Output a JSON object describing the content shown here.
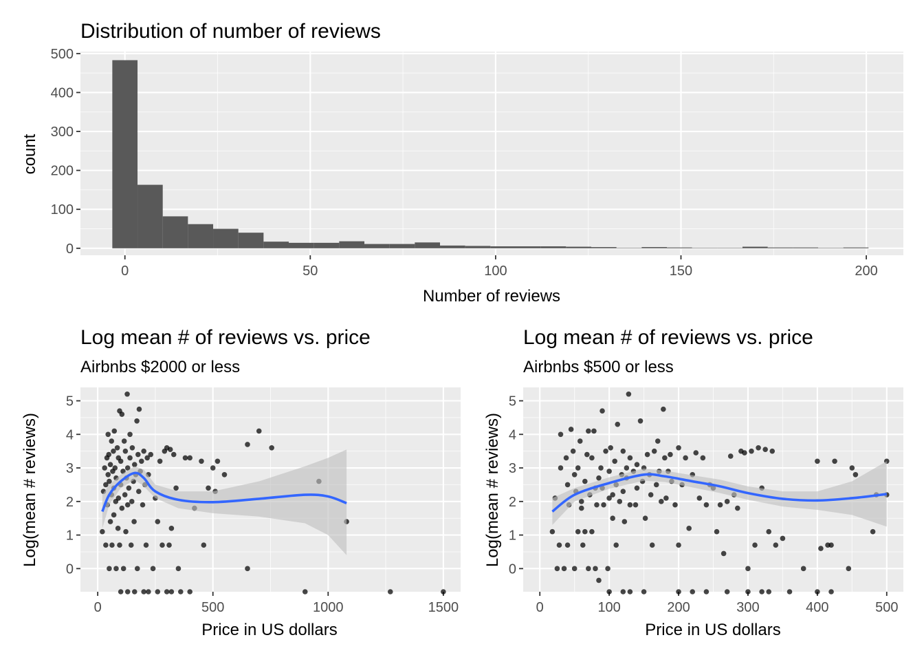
{
  "colors": {
    "panel_background": "#ebebeb",
    "histogram_fill": "#595959",
    "smooth_line": "#3366ff",
    "confidence_band": "#c0c0c0",
    "points": "#000000"
  },
  "chart_data": [
    {
      "type": "bar",
      "title": "Distribution of number of reviews",
      "subtitle": "",
      "xlabel": "Number of reviews",
      "ylabel": "count",
      "xlim": [
        -12,
        210
      ],
      "ylim": [
        -18,
        505
      ],
      "xticks": [
        0,
        50,
        100,
        150,
        200
      ],
      "yticks": [
        0,
        100,
        200,
        300,
        400,
        500
      ],
      "binwidth": 6.8,
      "bin_centers": [
        0,
        6.8,
        13.6,
        20.4,
        27.2,
        34,
        40.8,
        47.6,
        54.4,
        61.2,
        68,
        74.8,
        81.6,
        88.4,
        95.2,
        102,
        108.8,
        115.6,
        122.4,
        129.2,
        136,
        142.8,
        149.6,
        156.4,
        163.2,
        170,
        176.8,
        183.6,
        190.4,
        197.2
      ],
      "values": [
        483,
        163,
        82,
        62,
        50,
        40,
        17,
        14,
        14,
        18,
        11,
        11,
        15,
        7,
        6,
        5,
        5,
        5,
        4,
        3,
        1,
        3,
        2,
        1,
        1,
        4,
        2,
        2,
        1,
        2
      ],
      "grid": true,
      "legend": "none"
    },
    {
      "type": "scatter",
      "title": "Log mean #  of reviews vs. price",
      "subtitle": "Airbnbs $2000 or less",
      "xlabel": "Price in  US dollars",
      "ylabel": "Log(mean # reviews)",
      "xlim": [
        -75,
        1575
      ],
      "ylim": [
        -0.69,
        5.4
      ],
      "xticks": [
        0,
        500,
        1000,
        1500
      ],
      "yticks": [
        0,
        1,
        2,
        3,
        4,
        5
      ],
      "points": [
        [
          20,
          1.1
        ],
        [
          25,
          2.3
        ],
        [
          30,
          3.0
        ],
        [
          35,
          0.7
        ],
        [
          35,
          2.5
        ],
        [
          40,
          3.3
        ],
        [
          42,
          1.9
        ],
        [
          45,
          4.0
        ],
        [
          45,
          2.8
        ],
        [
          48,
          3.4
        ],
        [
          50,
          2.6
        ],
        [
          50,
          0.0
        ],
        [
          55,
          1.4
        ],
        [
          55,
          3.1
        ],
        [
          60,
          2.2
        ],
        [
          60,
          3.8
        ],
        [
          62,
          0.7
        ],
        [
          65,
          2.9
        ],
        [
          68,
          3.5
        ],
        [
          70,
          1.6
        ],
        [
          70,
          2.4
        ],
        [
          72,
          4.1
        ],
        [
          75,
          3.0
        ],
        [
          78,
          2.0
        ],
        [
          80,
          0.0
        ],
        [
          80,
          2.7
        ],
        [
          85,
          3.6
        ],
        [
          88,
          1.2
        ],
        [
          90,
          3.3
        ],
        [
          90,
          2.1
        ],
        [
          95,
          0.7
        ],
        [
          95,
          4.7
        ],
        [
          100,
          2.5
        ],
        [
          100,
          3.2
        ],
        [
          105,
          1.8
        ],
        [
          105,
          4.6
        ],
        [
          110,
          2.9
        ],
        [
          112,
          0.0
        ],
        [
          115,
          3.8
        ],
        [
          118,
          2.2
        ],
        [
          120,
          3.5
        ],
        [
          122,
          1.1
        ],
        [
          125,
          2.7
        ],
        [
          128,
          5.2
        ],
        [
          130,
          1.9
        ],
        [
          130,
          3.0
        ],
        [
          135,
          2.4
        ],
        [
          140,
          4.0
        ],
        [
          140,
          3.3
        ],
        [
          145,
          0.7
        ],
        [
          148,
          2.0
        ],
        [
          150,
          3.6
        ],
        [
          155,
          2.6
        ],
        [
          158,
          1.4
        ],
        [
          160,
          3.1
        ],
        [
          165,
          2.8
        ],
        [
          170,
          4.4
        ],
        [
          172,
          0.0
        ],
        [
          175,
          3.4
        ],
        [
          178,
          2.3
        ],
        [
          180,
          4.75
        ],
        [
          185,
          2.9
        ],
        [
          190,
          3.2
        ],
        [
          195,
          1.9
        ],
        [
          200,
          3.5
        ],
        [
          205,
          2.5
        ],
        [
          210,
          0.7
        ],
        [
          215,
          3.3
        ],
        [
          220,
          2.8
        ],
        [
          230,
          3.4
        ],
        [
          240,
          0.0
        ],
        [
          250,
          2.1
        ],
        [
          260,
          1.4
        ],
        [
          270,
          3.2
        ],
        [
          280,
          0.7
        ],
        [
          290,
          3.5
        ],
        [
          300,
          3.6
        ],
        [
          310,
          0.7
        ],
        [
          315,
          3.55
        ],
        [
          320,
          1.2
        ],
        [
          330,
          3.4
        ],
        [
          340,
          2.4
        ],
        [
          350,
          0.0
        ],
        [
          380,
          3.3
        ],
        [
          400,
          3.3
        ],
        [
          420,
          1.8
        ],
        [
          450,
          3.2
        ],
        [
          460,
          0.7
        ],
        [
          480,
          2.4
        ],
        [
          500,
          3.0
        ],
        [
          510,
          2.3
        ],
        [
          520,
          3.2
        ],
        [
          550,
          2.8
        ],
        [
          650,
          3.7
        ],
        [
          700,
          4.1
        ],
        [
          755,
          3.6
        ],
        [
          650,
          0.0
        ],
        [
          960,
          2.6
        ],
        [
          1080,
          1.4
        ],
        [
          1270,
          -0.69
        ],
        [
          1500,
          -0.69
        ],
        [
          100,
          -0.69
        ],
        [
          130,
          -0.69
        ],
        [
          160,
          -0.69
        ],
        [
          200,
          -0.69
        ],
        [
          220,
          -0.69
        ],
        [
          260,
          -0.69
        ],
        [
          300,
          -0.69
        ],
        [
          320,
          -0.69
        ],
        [
          360,
          -0.69
        ],
        [
          400,
          -0.69
        ],
        [
          900,
          -0.69
        ]
      ],
      "smooth_curve": [
        [
          20,
          1.7
        ],
        [
          50,
          2.2
        ],
        [
          100,
          2.6
        ],
        [
          160,
          2.85
        ],
        [
          200,
          2.7
        ],
        [
          250,
          2.3
        ],
        [
          350,
          2.05
        ],
        [
          500,
          1.98
        ],
        [
          700,
          2.08
        ],
        [
          900,
          2.2
        ],
        [
          1000,
          2.15
        ],
        [
          1080,
          1.95
        ]
      ],
      "band_lower": [
        [
          20,
          1.2
        ],
        [
          50,
          1.9
        ],
        [
          100,
          2.4
        ],
        [
          160,
          2.65
        ],
        [
          200,
          2.45
        ],
        [
          250,
          2.1
        ],
        [
          350,
          1.8
        ],
        [
          500,
          1.65
        ],
        [
          700,
          1.55
        ],
        [
          900,
          1.35
        ],
        [
          1000,
          1.0
        ],
        [
          1080,
          0.4
        ]
      ],
      "band_upper": [
        [
          20,
          2.2
        ],
        [
          50,
          2.5
        ],
        [
          100,
          2.8
        ],
        [
          160,
          3.05
        ],
        [
          200,
          2.95
        ],
        [
          250,
          2.5
        ],
        [
          350,
          2.3
        ],
        [
          500,
          2.3
        ],
        [
          700,
          2.6
        ],
        [
          900,
          3.05
        ],
        [
          1000,
          3.3
        ],
        [
          1080,
          3.55
        ]
      ],
      "grid": true,
      "legend": "none"
    },
    {
      "type": "scatter",
      "title": "Log mean # of reviews vs. price",
      "subtitle": "Airbnbs $500 or less",
      "xlabel": "Price in  US dollars",
      "ylabel": "Log(mean # reviews)",
      "xlim": [
        -24,
        524
      ],
      "ylim": [
        -0.69,
        5.4
      ],
      "xticks": [
        0,
        100,
        200,
        300,
        400,
        500
      ],
      "yticks": [
        0,
        1,
        2,
        3,
        4,
        5
      ],
      "points": [
        [
          18,
          1.1
        ],
        [
          22,
          2.1
        ],
        [
          25,
          0.0
        ],
        [
          28,
          0.7
        ],
        [
          30,
          3.0
        ],
        [
          30,
          4.0
        ],
        [
          35,
          0.0
        ],
        [
          38,
          3.3
        ],
        [
          40,
          2.5
        ],
        [
          40,
          0.7
        ],
        [
          42,
          1.9
        ],
        [
          45,
          4.15
        ],
        [
          48,
          3.5
        ],
        [
          50,
          2.8
        ],
        [
          50,
          0.0
        ],
        [
          52,
          2.3
        ],
        [
          55,
          1.1
        ],
        [
          55,
          3.0
        ],
        [
          58,
          3.8
        ],
        [
          60,
          2.0
        ],
        [
          60,
          1.8
        ],
        [
          62,
          0.7
        ],
        [
          65,
          1.1
        ],
        [
          65,
          2.6
        ],
        [
          68,
          3.4
        ],
        [
          70,
          0.0
        ],
        [
          70,
          4.1
        ],
        [
          72,
          2.2
        ],
        [
          75,
          3.3
        ],
        [
          75,
          1.1
        ],
        [
          78,
          4.1
        ],
        [
          80,
          2.4
        ],
        [
          80,
          0.0
        ],
        [
          82,
          1.9
        ],
        [
          85,
          2.7
        ],
        [
          85,
          -0.35
        ],
        [
          88,
          3.0
        ],
        [
          90,
          4.7
        ],
        [
          90,
          2.4
        ],
        [
          92,
          1.9
        ],
        [
          95,
          3.5
        ],
        [
          98,
          0.0
        ],
        [
          100,
          2.1
        ],
        [
          100,
          2.9
        ],
        [
          102,
          3.6
        ],
        [
          105,
          2.2
        ],
        [
          105,
          1.5
        ],
        [
          108,
          3.2
        ],
        [
          110,
          0.7
        ],
        [
          110,
          2.5
        ],
        [
          112,
          4.3
        ],
        [
          115,
          2.0
        ],
        [
          118,
          2.8
        ],
        [
          120,
          3.5
        ],
        [
          120,
          2.3
        ],
        [
          122,
          1.4
        ],
        [
          125,
          3.0
        ],
        [
          125,
          2.7
        ],
        [
          128,
          5.2
        ],
        [
          130,
          1.9
        ],
        [
          130,
          3.3
        ],
        [
          135,
          2.9
        ],
        [
          138,
          1.9
        ],
        [
          140,
          2.4
        ],
        [
          140,
          3.1
        ],
        [
          145,
          4.4
        ],
        [
          148,
          2.6
        ],
        [
          150,
          3.0
        ],
        [
          152,
          1.5
        ],
        [
          155,
          3.4
        ],
        [
          158,
          2.8
        ],
        [
          160,
          2.2
        ],
        [
          162,
          0.7
        ],
        [
          165,
          3.5
        ],
        [
          168,
          2.5
        ],
        [
          170,
          3.8
        ],
        [
          172,
          2.9
        ],
        [
          175,
          2.0
        ],
        [
          178,
          4.75
        ],
        [
          180,
          3.3
        ],
        [
          182,
          2.1
        ],
        [
          185,
          2.9
        ],
        [
          188,
          3.4
        ],
        [
          190,
          2.6
        ],
        [
          195,
          1.9
        ],
        [
          200,
          3.6
        ],
        [
          200,
          0.7
        ],
        [
          205,
          2.5
        ],
        [
          210,
          3.3
        ],
        [
          215,
          1.2
        ],
        [
          220,
          2.8
        ],
        [
          225,
          3.45
        ],
        [
          230,
          2.1
        ],
        [
          235,
          3.3
        ],
        [
          240,
          1.9
        ],
        [
          245,
          2.5
        ],
        [
          250,
          2.4
        ],
        [
          255,
          1.1
        ],
        [
          260,
          1.9
        ],
        [
          265,
          0.45
        ],
        [
          270,
          2.0
        ],
        [
          275,
          3.35
        ],
        [
          280,
          2.2
        ],
        [
          285,
          1.8
        ],
        [
          290,
          3.5
        ],
        [
          295,
          3.45
        ],
        [
          300,
          0.0
        ],
        [
          305,
          3.5
        ],
        [
          310,
          0.7
        ],
        [
          315,
          3.6
        ],
        [
          320,
          2.4
        ],
        [
          325,
          3.55
        ],
        [
          330,
          1.1
        ],
        [
          335,
          3.5
        ],
        [
          340,
          0.7
        ],
        [
          350,
          0.9
        ],
        [
          380,
          0.0
        ],
        [
          400,
          3.2
        ],
        [
          405,
          0.6
        ],
        [
          415,
          0.7
        ],
        [
          420,
          0.7
        ],
        [
          425,
          3.2
        ],
        [
          445,
          0.0
        ],
        [
          450,
          3.0
        ],
        [
          455,
          2.8
        ],
        [
          480,
          1.1
        ],
        [
          485,
          2.2
        ],
        [
          500,
          3.2
        ],
        [
          500,
          2.2
        ],
        [
          100,
          -0.69
        ],
        [
          120,
          -0.69
        ],
        [
          130,
          -0.69
        ],
        [
          150,
          -0.69
        ],
        [
          200,
          -0.69
        ],
        [
          220,
          -0.69
        ],
        [
          240,
          -0.69
        ],
        [
          270,
          -0.69
        ],
        [
          300,
          -0.69
        ],
        [
          320,
          -0.69
        ],
        [
          330,
          -0.69
        ],
        [
          360,
          -0.69
        ],
        [
          400,
          -0.69
        ],
        [
          420,
          -0.69
        ]
      ],
      "smooth_curve": [
        [
          18,
          1.7
        ],
        [
          50,
          2.2
        ],
        [
          100,
          2.55
        ],
        [
          150,
          2.8
        ],
        [
          180,
          2.75
        ],
        [
          220,
          2.6
        ],
        [
          260,
          2.45
        ],
        [
          300,
          2.25
        ],
        [
          350,
          2.08
        ],
        [
          400,
          2.03
        ],
        [
          450,
          2.1
        ],
        [
          500,
          2.22
        ]
      ],
      "band_lower": [
        [
          18,
          1.3
        ],
        [
          50,
          2.0
        ],
        [
          100,
          2.38
        ],
        [
          150,
          2.62
        ],
        [
          180,
          2.58
        ],
        [
          220,
          2.42
        ],
        [
          260,
          2.25
        ],
        [
          300,
          2.05
        ],
        [
          350,
          1.85
        ],
        [
          400,
          1.75
        ],
        [
          450,
          1.6
        ],
        [
          500,
          1.25
        ]
      ],
      "band_upper": [
        [
          18,
          2.1
        ],
        [
          50,
          2.4
        ],
        [
          100,
          2.72
        ],
        [
          150,
          2.98
        ],
        [
          180,
          2.92
        ],
        [
          220,
          2.78
        ],
        [
          260,
          2.65
        ],
        [
          300,
          2.45
        ],
        [
          350,
          2.3
        ],
        [
          400,
          2.3
        ],
        [
          450,
          2.6
        ],
        [
          500,
          3.2
        ]
      ],
      "grid": true,
      "legend": "none"
    }
  ]
}
